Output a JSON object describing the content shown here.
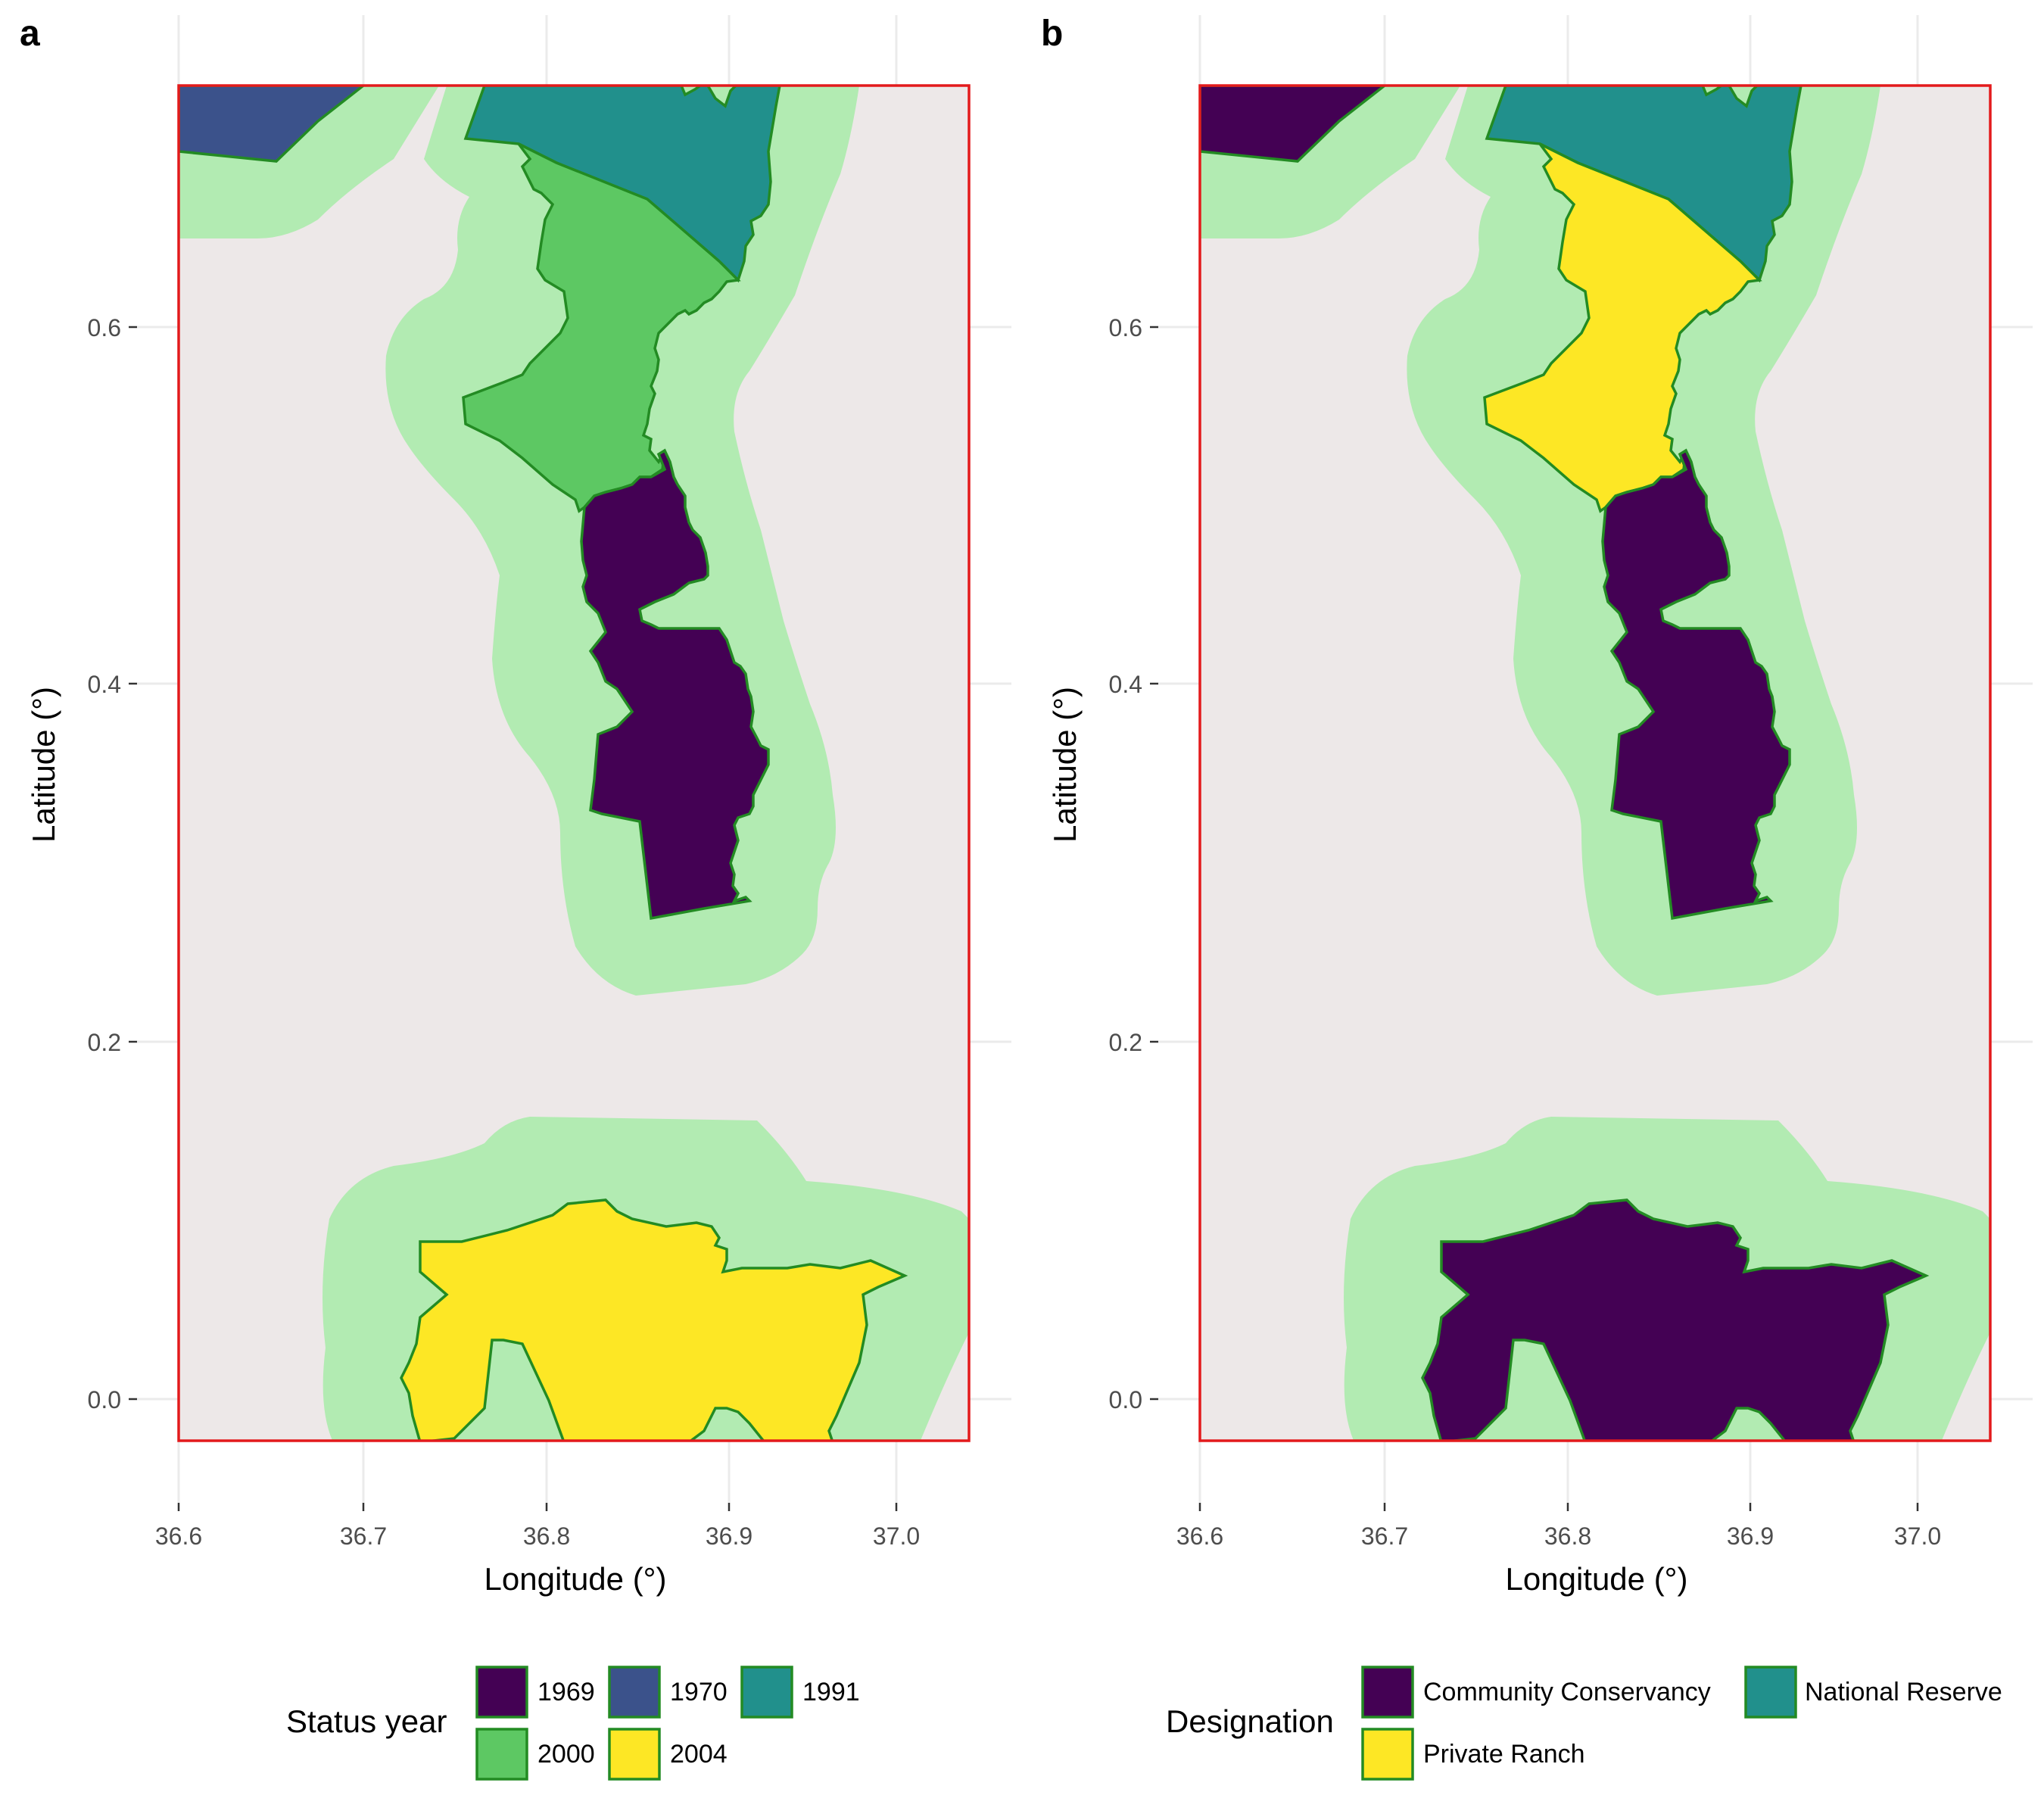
{
  "colors": {
    "c1969": "#440154",
    "c1970": "#3b528b",
    "c1991": "#21908c",
    "c2000": "#5dc863",
    "c2004": "#fde725",
    "buffer": "#b2ebb2",
    "background": "#ede8e8",
    "extent_border": "#e31a1c",
    "polygon_outline": "#238b23"
  },
  "panels": [
    {
      "letter": "a",
      "xlabel": "Longitude (°)",
      "ylabel": "Latitude (°)",
      "x_ticks": [
        "36.6",
        "36.7",
        "36.8",
        "36.9",
        "37.0"
      ],
      "y_ticks": [
        "0.0",
        "0.2",
        "0.4",
        "0.6"
      ],
      "legend": {
        "title": "Status year",
        "items": [
          {
            "label": "1969",
            "color": "#440154"
          },
          {
            "label": "1970",
            "color": "#3b528b"
          },
          {
            "label": "1991",
            "color": "#21908c"
          },
          {
            "label": "2000",
            "color": "#5dc863"
          },
          {
            "label": "2004",
            "color": "#fde725"
          }
        ]
      },
      "regions": {
        "nw": "#3b528b",
        "north": "#21908c",
        "upper": "#5dc863",
        "central": "#440154",
        "south": "#fde725"
      }
    },
    {
      "letter": "b",
      "xlabel": "Longitude (°)",
      "ylabel": "Latitude (°)",
      "x_ticks": [
        "36.6",
        "36.7",
        "36.8",
        "36.9",
        "37.0"
      ],
      "y_ticks": [
        "0.0",
        "0.2",
        "0.4",
        "0.6"
      ],
      "legend": {
        "title": "Designation",
        "items": [
          {
            "label": "Community Conservancy",
            "color": "#440154"
          },
          {
            "label": "National Reserve",
            "color": "#21908c"
          },
          {
            "label": "Private Ranch",
            "color": "#fde725"
          }
        ]
      },
      "regions": {
        "nw": "#440154",
        "north": "#21908c",
        "upper": "#fde725",
        "central": "#440154",
        "south": "#440154"
      }
    }
  ]
}
